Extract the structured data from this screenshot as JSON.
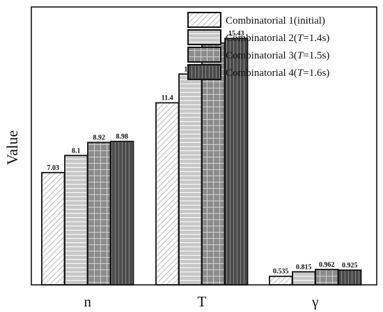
{
  "chart_data": {
    "type": "bar",
    "title": "",
    "xlabel": "",
    "ylabel": "Value",
    "ylim": [
      0,
      17.4
    ],
    "categories": [
      "n",
      "T",
      "γ"
    ],
    "legend_position": "top-right",
    "grid": false,
    "series": [
      {
        "name": "Combinatorial 1(initial)",
        "legend_parts": [
          {
            "text": "Combinatorial 1(initial)",
            "italic": false
          }
        ],
        "values": [
          7.03,
          11.4,
          0.535
        ],
        "value_labels": [
          "7.03",
          "11.4",
          "0.535"
        ],
        "fill": "#ffffff",
        "pattern": "diagonal"
      },
      {
        "name": "Combinatorial 2(T=1.4s)",
        "legend_parts": [
          {
            "text": "Combinatorial 2(",
            "italic": false
          },
          {
            "text": "T",
            "italic": true
          },
          {
            "text": "=1.4s)",
            "italic": false
          }
        ],
        "values": [
          8.1,
          13.2,
          0.815
        ],
        "value_labels": [
          "8.1",
          "13.2",
          "0.815"
        ],
        "fill": "#c8c8c8",
        "pattern": "horizontal"
      },
      {
        "name": "Combinatorial 3(T=1.5s)",
        "legend_parts": [
          {
            "text": "Combinatorial 3(",
            "italic": false
          },
          {
            "text": "T",
            "italic": true
          },
          {
            "text": "=1.5s)",
            "italic": false
          }
        ],
        "values": [
          8.92,
          15.14,
          0.962
        ],
        "value_labels": [
          "8.92",
          "15.14",
          "0.962"
        ],
        "fill": "#8c8c8c",
        "pattern": "grid"
      },
      {
        "name": "Combinatorial 4(T=1.6s)",
        "legend_parts": [
          {
            "text": "Combinatorial 4(",
            "italic": false
          },
          {
            "text": "T",
            "italic": true
          },
          {
            "text": "=1.6s)",
            "italic": false
          }
        ],
        "values": [
          8.98,
          15.43,
          0.925
        ],
        "value_labels": [
          "8.98",
          "15.43",
          "0.925"
        ],
        "fill": "#4a4a4a",
        "pattern": "vertical"
      }
    ]
  }
}
